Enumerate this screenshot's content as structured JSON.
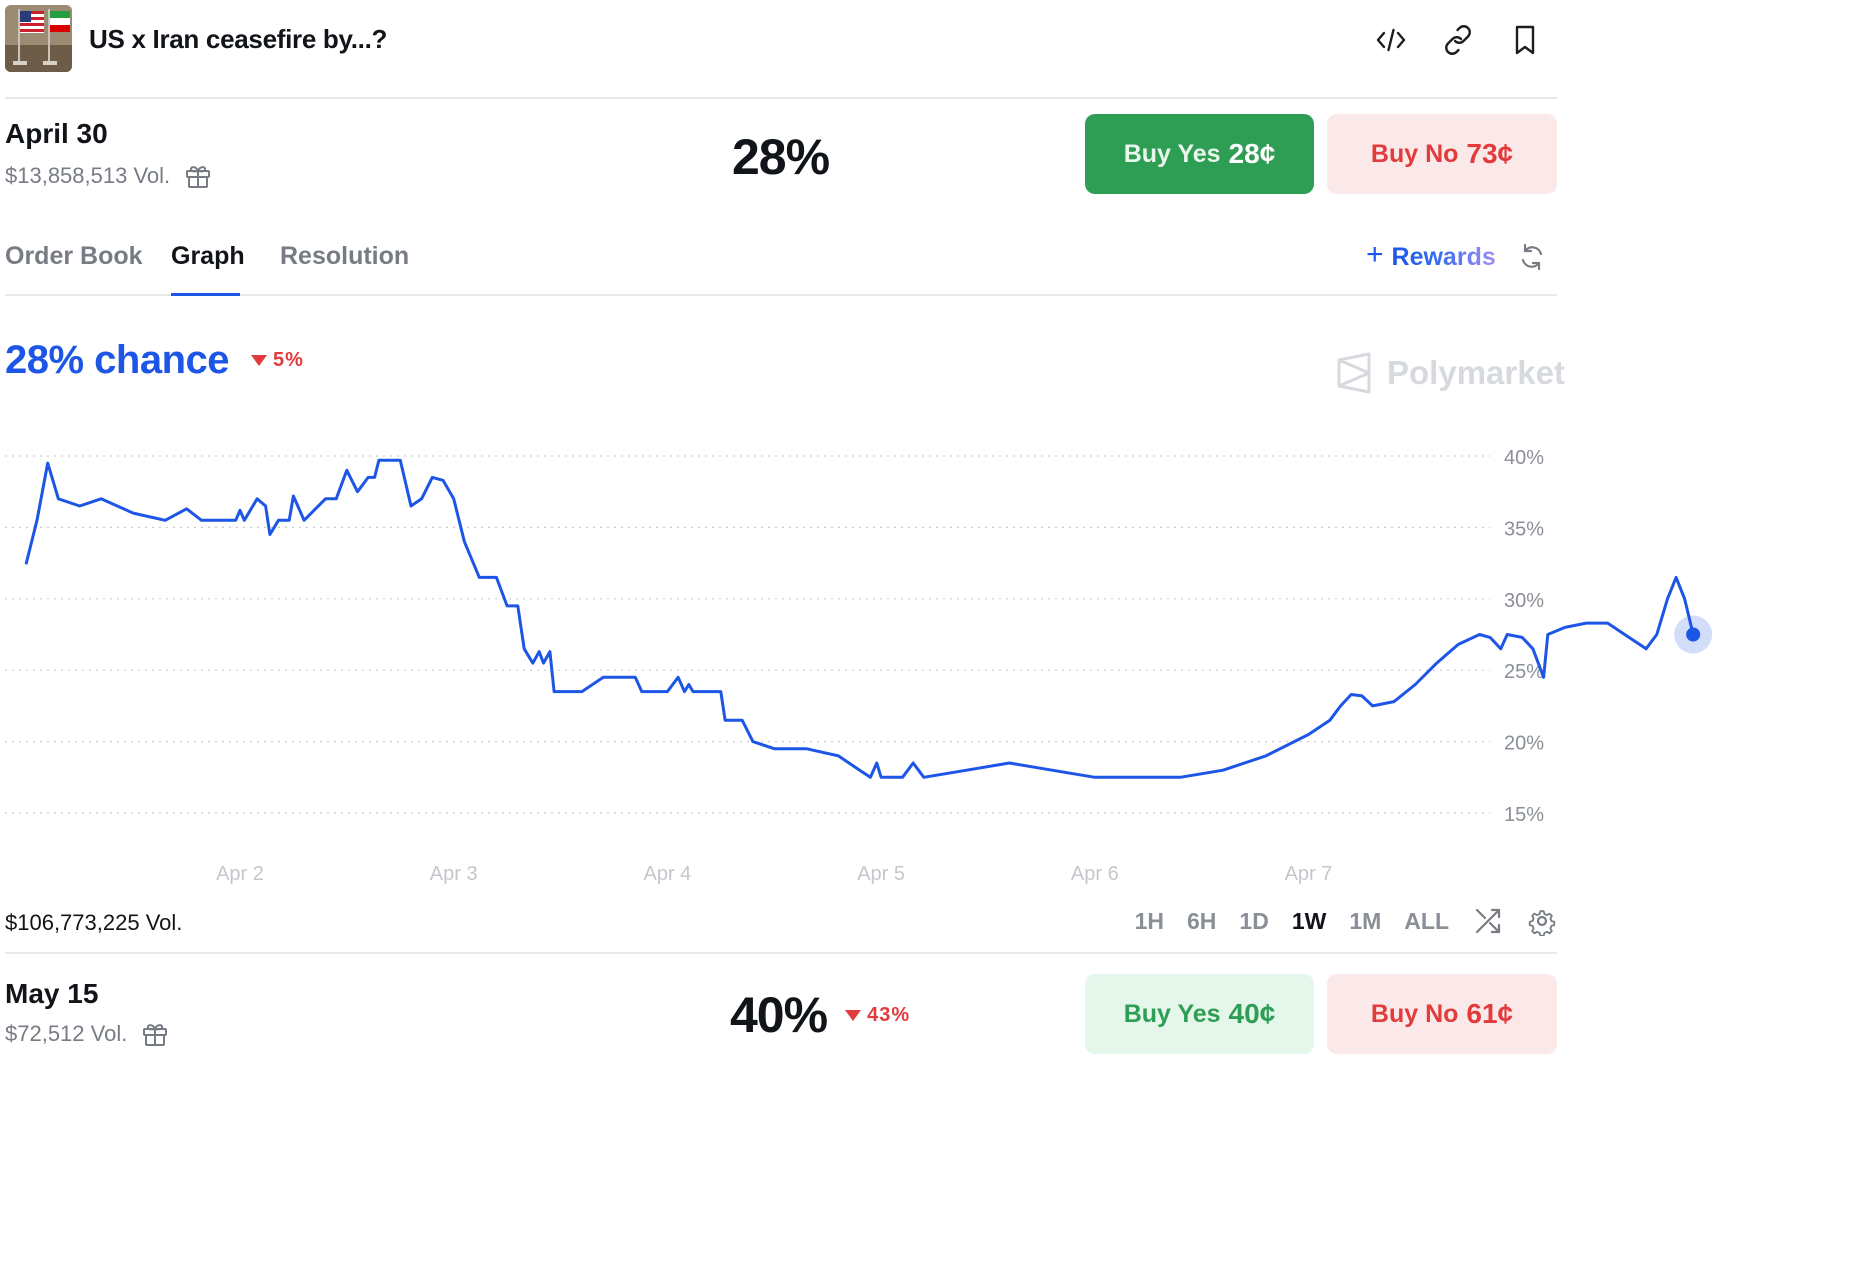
{
  "header": {
    "title": "US x Iran ceasefire by...?",
    "icons": [
      "code-icon",
      "link-icon",
      "bookmark-icon"
    ]
  },
  "market1": {
    "date": "April 30",
    "volume": "$13,858,513 Vol.",
    "percent": "28%",
    "buy_yes_label": "Buy Yes",
    "buy_yes_price": "28¢",
    "buy_no_label": "Buy No",
    "buy_no_price": "73¢"
  },
  "tabs": {
    "items": [
      "Order Book",
      "Graph",
      "Resolution"
    ],
    "active": "Graph",
    "rewards_label": "Rewards"
  },
  "graph": {
    "chance": "28% chance",
    "delta": "5%",
    "brand": "Polymarket",
    "total_volume": "$106,773,225 Vol.",
    "ranges": [
      "1H",
      "6H",
      "1D",
      "1W",
      "1M",
      "ALL"
    ],
    "active_range": "1W"
  },
  "chart_data": {
    "type": "line",
    "x_ticks": [
      "Apr 2",
      "Apr 3",
      "Apr 4",
      "Apr 5",
      "Apr 6",
      "Apr 7"
    ],
    "y_ticks": [
      "40%",
      "35%",
      "30%",
      "25%",
      "20%",
      "15%"
    ],
    "ylim": [
      15,
      40
    ],
    "grid": true,
    "color": "#1d56e6",
    "series": [
      {
        "values": [
          [
            0.0,
            32.5
          ],
          [
            0.05,
            35.5
          ],
          [
            0.1,
            39.5
          ],
          [
            0.15,
            37.0
          ],
          [
            0.25,
            36.5
          ],
          [
            0.35,
            37.0
          ],
          [
            0.5,
            36.0
          ],
          [
            0.65,
            35.5
          ],
          [
            0.75,
            36.3
          ],
          [
            0.82,
            35.5
          ],
          [
            0.98,
            35.5
          ],
          [
            1.0,
            36.2
          ],
          [
            1.02,
            35.5
          ],
          [
            1.08,
            37.0
          ],
          [
            1.12,
            36.5
          ],
          [
            1.14,
            34.5
          ],
          [
            1.18,
            35.5
          ],
          [
            1.23,
            35.5
          ],
          [
            1.25,
            37.2
          ],
          [
            1.3,
            35.5
          ],
          [
            1.4,
            37.0
          ],
          [
            1.45,
            37.0
          ],
          [
            1.5,
            39.0
          ],
          [
            1.55,
            37.5
          ],
          [
            1.6,
            38.5
          ],
          [
            1.63,
            38.5
          ],
          [
            1.65,
            39.7
          ],
          [
            1.75,
            39.7
          ],
          [
            1.8,
            36.5
          ],
          [
            1.85,
            37.0
          ],
          [
            1.9,
            38.5
          ],
          [
            1.95,
            38.3
          ],
          [
            2.0,
            37.0
          ],
          [
            2.05,
            34.0
          ],
          [
            2.12,
            31.5
          ],
          [
            2.2,
            31.5
          ],
          [
            2.25,
            29.5
          ],
          [
            2.3,
            29.5
          ],
          [
            2.33,
            26.5
          ],
          [
            2.37,
            25.5
          ],
          [
            2.4,
            26.3
          ],
          [
            2.42,
            25.5
          ],
          [
            2.45,
            26.3
          ],
          [
            2.47,
            23.5
          ],
          [
            2.6,
            23.5
          ],
          [
            2.7,
            24.5
          ],
          [
            2.85,
            24.5
          ],
          [
            2.88,
            23.5
          ],
          [
            3.0,
            23.5
          ],
          [
            3.05,
            24.5
          ],
          [
            3.08,
            23.5
          ],
          [
            3.1,
            24.0
          ],
          [
            3.12,
            23.5
          ],
          [
            3.25,
            23.5
          ],
          [
            3.27,
            21.5
          ],
          [
            3.35,
            21.5
          ],
          [
            3.4,
            20.0
          ],
          [
            3.5,
            19.5
          ],
          [
            3.65,
            19.5
          ],
          [
            3.8,
            19.0
          ],
          [
            3.9,
            18.0
          ],
          [
            3.95,
            17.5
          ],
          [
            3.98,
            18.5
          ],
          [
            4.0,
            17.5
          ],
          [
            4.1,
            17.5
          ],
          [
            4.15,
            18.5
          ],
          [
            4.2,
            17.5
          ],
          [
            4.4,
            18.0
          ],
          [
            4.6,
            18.5
          ],
          [
            4.8,
            18.0
          ],
          [
            5.0,
            17.5
          ],
          [
            5.2,
            17.5
          ],
          [
            5.4,
            17.5
          ],
          [
            5.6,
            18.0
          ],
          [
            5.8,
            19.0
          ],
          [
            6.0,
            20.5
          ],
          [
            6.1,
            21.5
          ],
          [
            6.15,
            22.5
          ],
          [
            6.2,
            23.3
          ],
          [
            6.25,
            23.2
          ],
          [
            6.3,
            22.5
          ],
          [
            6.4,
            22.8
          ],
          [
            6.5,
            24.0
          ],
          [
            6.6,
            25.5
          ],
          [
            6.7,
            26.8
          ],
          [
            6.8,
            27.5
          ],
          [
            6.85,
            27.3
          ],
          [
            6.9,
            26.5
          ],
          [
            6.93,
            27.5
          ],
          [
            7.0,
            27.3
          ],
          [
            7.05,
            26.5
          ],
          [
            7.1,
            24.5
          ],
          [
            7.12,
            27.5
          ],
          [
            7.2,
            28.0
          ],
          [
            7.3,
            28.3
          ],
          [
            7.4,
            28.3
          ],
          [
            7.5,
            27.3
          ],
          [
            7.58,
            26.5
          ],
          [
            7.63,
            27.5
          ],
          [
            7.68,
            30.0
          ],
          [
            7.72,
            31.5
          ],
          [
            7.76,
            30.0
          ],
          [
            7.8,
            27.5
          ]
        ]
      }
    ]
  },
  "market2": {
    "date": "May 15",
    "volume": "$72,512 Vol.",
    "percent": "40%",
    "delta": "43%",
    "buy_yes_label": "Buy Yes",
    "buy_yes_price": "40¢",
    "buy_no_label": "Buy No",
    "buy_no_price": "61¢"
  }
}
